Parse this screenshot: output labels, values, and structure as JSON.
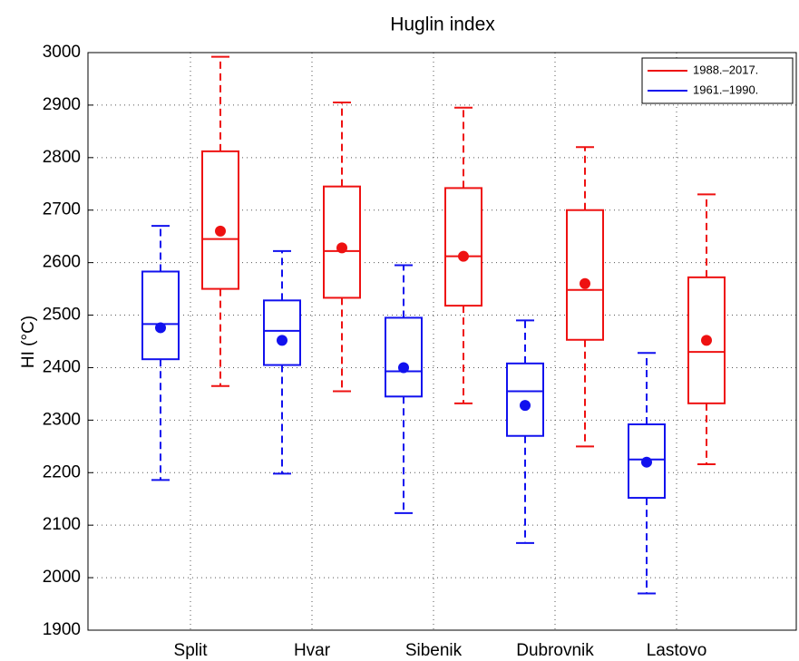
{
  "chart_data": {
    "type": "box",
    "title": "Huglin index",
    "y_label": "HI (°C)",
    "categories": [
      "Split",
      "Hvar",
      "Sibenik",
      "Dubrovnik",
      "Lastovo"
    ],
    "ylim": [
      1900,
      3000
    ],
    "yticks": [
      1900,
      2000,
      2100,
      2200,
      2300,
      2400,
      2500,
      2600,
      2700,
      2800,
      2900,
      3000
    ],
    "grid": true,
    "legend": "upper right",
    "series": [
      {
        "name": "1988.–2017.",
        "color": "#ee1111",
        "values": [
          {
            "min": 2365,
            "q1": 2550,
            "median": 2645,
            "q3": 2812,
            "max": 2992,
            "mean": 2660
          },
          {
            "min": 2355,
            "q1": 2533,
            "median": 2622,
            "q3": 2745,
            "max": 2905,
            "mean": 2628
          },
          {
            "min": 2332,
            "q1": 2518,
            "median": 2612,
            "q3": 2742,
            "max": 2895,
            "mean": 2612
          },
          {
            "min": 2250,
            "q1": 2453,
            "median": 2548,
            "q3": 2700,
            "max": 2820,
            "mean": 2560
          },
          {
            "min": 2216,
            "q1": 2332,
            "median": 2430,
            "q3": 2572,
            "max": 2730,
            "mean": 2452
          }
        ]
      },
      {
        "name": "1961.–1990.",
        "color": "#1111ee",
        "values": [
          {
            "min": 2186,
            "q1": 2416,
            "median": 2483,
            "q3": 2583,
            "max": 2670,
            "mean": 2476
          },
          {
            "min": 2198,
            "q1": 2405,
            "median": 2470,
            "q3": 2528,
            "max": 2622,
            "mean": 2452
          },
          {
            "min": 2123,
            "q1": 2345,
            "median": 2393,
            "q3": 2495,
            "max": 2595,
            "mean": 2400
          },
          {
            "min": 2066,
            "q1": 2270,
            "median": 2355,
            "q3": 2408,
            "max": 2490,
            "mean": 2328
          },
          {
            "min": 1970,
            "q1": 2152,
            "median": 2225,
            "q3": 2292,
            "max": 2428,
            "mean": 2220
          }
        ]
      }
    ]
  }
}
